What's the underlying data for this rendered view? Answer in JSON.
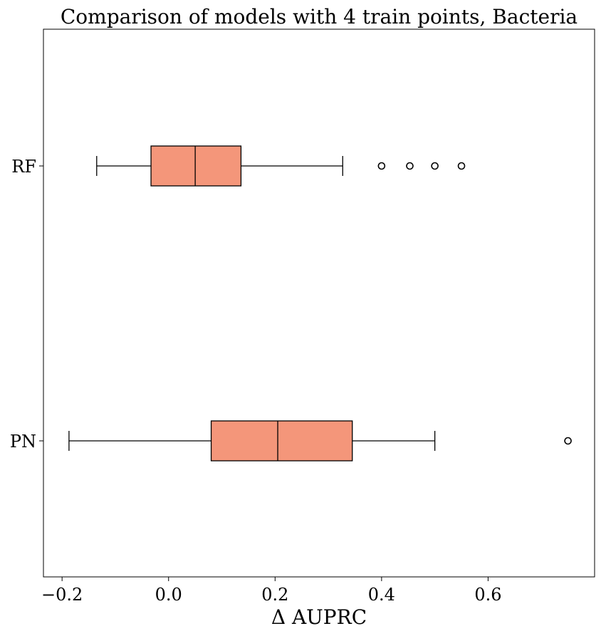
{
  "chart_data": {
    "type": "boxplot",
    "orientation": "horizontal",
    "title": "Comparison of models with 4 train points, Bacteria",
    "xlabel": "Δ AUPRC",
    "ylabel": "",
    "xlim": [
      -0.235,
      0.8
    ],
    "x_ticks": [
      -0.2,
      0.0,
      0.2,
      0.4,
      0.6
    ],
    "x_tick_labels": [
      "−0.2",
      "0.0",
      "0.2",
      "0.4",
      "0.6"
    ],
    "grid": false,
    "box_color": "#f4967a",
    "edge_color": "#000000",
    "categories": [
      "RF",
      "PN"
    ],
    "boxes": [
      {
        "label": "RF",
        "whisker_low": -0.135,
        "q1": -0.033,
        "median": 0.05,
        "q3": 0.136,
        "whisker_high": 0.327,
        "outliers": [
          0.4,
          0.453,
          0.5,
          0.55
        ]
      },
      {
        "label": "PN",
        "whisker_low": -0.187,
        "q1": 0.08,
        "median": 0.205,
        "q3": 0.345,
        "whisker_high": 0.5,
        "outliers": [
          0.75
        ]
      }
    ]
  }
}
